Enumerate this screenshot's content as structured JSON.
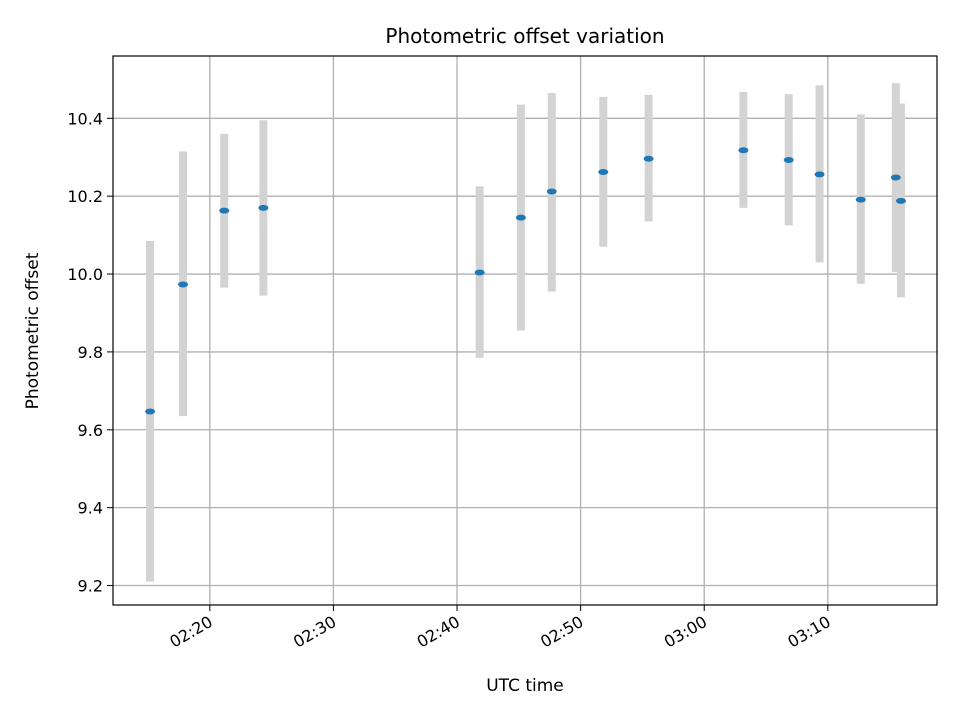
{
  "chart_data": {
    "type": "scatter",
    "title": "Photometric offset variation",
    "xlabel": "UTC time",
    "ylabel": "Photometric offset",
    "grid": true,
    "x_unit": "time",
    "xlim": [
      "02:12:10",
      "03:18:50"
    ],
    "ylim": [
      9.15,
      10.56
    ],
    "x_ticks": [
      "02:20",
      "02:30",
      "02:40",
      "02:50",
      "03:00",
      "03:10"
    ],
    "y_ticks": [
      "9.2",
      "9.4",
      "9.6",
      "9.8",
      "10.0",
      "10.2",
      "10.4"
    ],
    "point_color": "#1f77b4",
    "errorbar_color": "#d3d3d3",
    "points": [
      {
        "x": "02:15:10",
        "y": 9.647,
        "ylow": 9.21,
        "yhigh": 10.085
      },
      {
        "x": "02:17:50",
        "y": 9.973,
        "ylow": 9.635,
        "yhigh": 10.315
      },
      {
        "x": "02:21:10",
        "y": 10.163,
        "ylow": 9.965,
        "yhigh": 10.36
      },
      {
        "x": "02:24:20",
        "y": 10.17,
        "ylow": 9.945,
        "yhigh": 10.395
      },
      {
        "x": "02:41:50",
        "y": 10.004,
        "ylow": 9.785,
        "yhigh": 10.225
      },
      {
        "x": "02:45:10",
        "y": 10.145,
        "ylow": 9.855,
        "yhigh": 10.435
      },
      {
        "x": "02:47:40",
        "y": 10.212,
        "ylow": 9.955,
        "yhigh": 10.465
      },
      {
        "x": "02:51:50",
        "y": 10.262,
        "ylow": 10.07,
        "yhigh": 10.455
      },
      {
        "x": "02:55:30",
        "y": 10.296,
        "ylow": 10.135,
        "yhigh": 10.46
      },
      {
        "x": "03:03:10",
        "y": 10.318,
        "ylow": 10.17,
        "yhigh": 10.468
      },
      {
        "x": "03:06:50",
        "y": 10.293,
        "ylow": 10.125,
        "yhigh": 10.462
      },
      {
        "x": "03:09:20",
        "y": 10.256,
        "ylow": 10.03,
        "yhigh": 10.485
      },
      {
        "x": "03:12:40",
        "y": 10.191,
        "ylow": 9.975,
        "yhigh": 10.41
      },
      {
        "x": "03:15:30",
        "y": 10.248,
        "ylow": 10.005,
        "yhigh": 10.49
      },
      {
        "x": "03:15:55",
        "y": 10.188,
        "ylow": 9.94,
        "yhigh": 10.438
      }
    ]
  }
}
